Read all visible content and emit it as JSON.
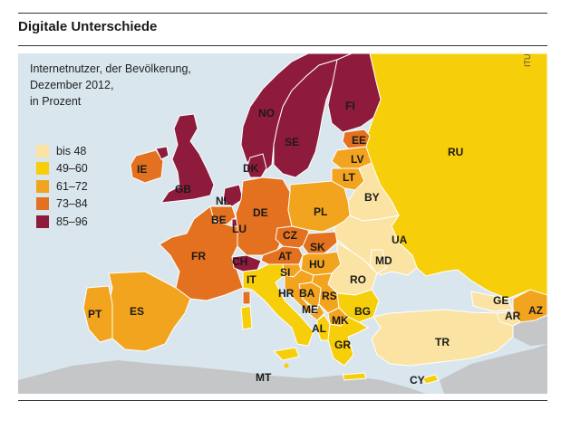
{
  "header": {
    "title": "Digitale Unterschiede"
  },
  "map": {
    "subtitle_lines": [
      "Internetnutzer, der Bevölkerung,",
      "Dezember 2012,",
      "in Prozent"
    ],
    "source": "ITU",
    "colors": {
      "sea": "#d9e6ee",
      "non_europe": "#c4c6c8",
      "border": "#ffffff",
      "bis48": "#fbe3a3",
      "c49_60": "#f7ce0a",
      "c61_72": "#f2a41e",
      "c73_84": "#e3711f",
      "c85_96": "#8e1b3c"
    },
    "legend": [
      {
        "label": "bis 48",
        "color": "#fbe3a3"
      },
      {
        "label": "49–60",
        "color": "#f7ce0a"
      },
      {
        "label": "61–72",
        "color": "#f2a41e"
      },
      {
        "label": "73–84",
        "color": "#e3711f"
      },
      {
        "label": "85–96",
        "color": "#8e1b3c"
      }
    ],
    "countries": {
      "NO": "NO",
      "SE": "SE",
      "FI": "FI",
      "RU": "RU",
      "EE": "EE",
      "LV": "LV",
      "LT": "LT",
      "DK": "DK",
      "IE": "IE",
      "GB": "GB",
      "NL": "NL",
      "BE": "BE",
      "LU": "LU",
      "DE": "DE",
      "PL": "PL",
      "BY": "BY",
      "UA": "UA",
      "CZ": "CZ",
      "SK": "SK",
      "AT": "AT",
      "HU": "HU",
      "MD": "MD",
      "FR": "FR",
      "CH": "CH",
      "SI": "SI",
      "IT": "IT",
      "HR": "HR",
      "BA": "BA",
      "RS": "RS",
      "RO": "RO",
      "ME": "ME",
      "MK": "MK",
      "BG": "BG",
      "AL": "AL",
      "GR": "GR",
      "PT": "PT",
      "ES": "ES",
      "TR": "TR",
      "GE": "GE",
      "AR": "AR",
      "AZ": "AZ",
      "MT": "MT",
      "CY": "CY"
    }
  }
}
